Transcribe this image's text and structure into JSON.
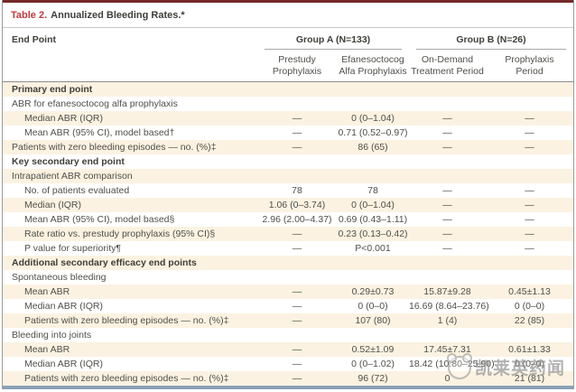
{
  "title": {
    "label": "Table 2.",
    "text": "Annualized Bleeding Rates.*"
  },
  "header": {
    "end_point": "End Point",
    "groups": [
      {
        "label": "Group A (N=133)",
        "columns": [
          "Prestudy\nProphylaxis",
          "Efanesoctocog\nAlfa Prophylaxis"
        ]
      },
      {
        "label": "Group B (N=26)",
        "columns": [
          "On-Demand\nTreatment Period",
          "Prophylaxis\nPeriod"
        ]
      }
    ]
  },
  "rows": [
    {
      "label": "Primary end point",
      "style": "section",
      "indent": 0,
      "shaded": true,
      "values": [
        "",
        "",
        "",
        ""
      ]
    },
    {
      "label": "ABR for efanesoctocog alfa prophylaxis",
      "style": "item",
      "indent": 0,
      "shaded": false,
      "values": [
        "",
        "",
        "",
        ""
      ]
    },
    {
      "label": "Median ABR (IQR)",
      "style": "item",
      "indent": 1,
      "shaded": true,
      "values": [
        "—",
        "0 (0–1.04)",
        "—",
        "—"
      ]
    },
    {
      "label": "Mean ABR (95% CI), model based†",
      "style": "item",
      "indent": 1,
      "shaded": false,
      "values": [
        "—",
        "0.71 (0.52–0.97)",
        "—",
        "—"
      ]
    },
    {
      "label": "Patients with zero bleeding episodes — no. (%)‡",
      "style": "item",
      "indent": 0,
      "shaded": true,
      "values": [
        "—",
        "86 (65)",
        "—",
        "—"
      ]
    },
    {
      "label": "Key secondary end point",
      "style": "section",
      "indent": 0,
      "shaded": false,
      "values": [
        "",
        "",
        "",
        ""
      ]
    },
    {
      "label": "Intrapatient ABR comparison",
      "style": "item",
      "indent": 0,
      "shaded": true,
      "values": [
        "",
        "",
        "",
        ""
      ]
    },
    {
      "label": "No. of patients evaluated",
      "style": "item",
      "indent": 1,
      "shaded": false,
      "values": [
        "78",
        "78",
        "—",
        "—"
      ]
    },
    {
      "label": "Median (IQR)",
      "style": "item",
      "indent": 1,
      "shaded": true,
      "values": [
        "1.06 (0–3.74)",
        "0 (0–1.04)",
        "—",
        "—"
      ]
    },
    {
      "label": "Mean ABR (95% CI), model based§",
      "style": "item",
      "indent": 1,
      "shaded": false,
      "values": [
        "2.96 (2.00–4.37)",
        "0.69 (0.43–1.11)",
        "—",
        "—"
      ]
    },
    {
      "label": "Rate ratio vs. prestudy prophylaxis (95% CI)§",
      "style": "item",
      "indent": 1,
      "shaded": true,
      "values": [
        "—",
        "0.23 (0.13–0.42)",
        "—",
        "—"
      ]
    },
    {
      "label": "P value for superiority¶",
      "style": "item",
      "indent": 1,
      "shaded": false,
      "values": [
        "—",
        "P<0.001",
        "—",
        "—"
      ]
    },
    {
      "label": "Additional secondary efficacy end points",
      "style": "section",
      "indent": 0,
      "shaded": true,
      "values": [
        "",
        "",
        "",
        ""
      ]
    },
    {
      "label": "Spontaneous bleeding",
      "style": "item",
      "indent": 0,
      "shaded": false,
      "values": [
        "",
        "",
        "",
        ""
      ]
    },
    {
      "label": "Mean ABR",
      "style": "item",
      "indent": 1,
      "shaded": true,
      "values": [
        "—",
        "0.29±0.73",
        "15.87±9.28",
        "0.45±1.13"
      ]
    },
    {
      "label": "Median ABR (IQR)",
      "style": "item",
      "indent": 1,
      "shaded": false,
      "values": [
        "—",
        "0 (0–0)",
        "16.69 (8.64–23.76)",
        "0 (0–0)"
      ]
    },
    {
      "label": "Patients with zero bleeding episodes — no. (%)‡",
      "style": "item",
      "indent": 1,
      "shaded": true,
      "values": [
        "—",
        "107 (80)",
        "1 (4)",
        "22 (85)"
      ]
    },
    {
      "label": "Bleeding into joints",
      "style": "item",
      "indent": 0,
      "shaded": false,
      "values": [
        "",
        "",
        "",
        ""
      ]
    },
    {
      "label": "Mean ABR",
      "style": "item",
      "indent": 1,
      "shaded": true,
      "values": [
        "—",
        "0.52±1.09",
        "17.45±7.31",
        "0.61±1.33"
      ]
    },
    {
      "label": "Median ABR (IQR)",
      "style": "item",
      "indent": 1,
      "shaded": false,
      "values": [
        "—",
        "0 (0–1.02)",
        "18.42 (10.80–25.90)",
        "0 (0–0)"
      ]
    },
    {
      "label": "Patients with zero bleeding episodes — no. (%)‡",
      "style": "item",
      "indent": 1,
      "shaded": true,
      "values": [
        "—",
        "96 (72)",
        "0",
        "21 (81)"
      ]
    }
  ],
  "watermark": {
    "text": "凯莱英药闻",
    "logo": "mascot-logo"
  },
  "colors": {
    "top_border": "#75292a",
    "title_accent": "#bf3a3e",
    "row_shade": "#fbf2e1",
    "bottom_bar": "#8ba0b6",
    "body_text": "#504f4a"
  }
}
